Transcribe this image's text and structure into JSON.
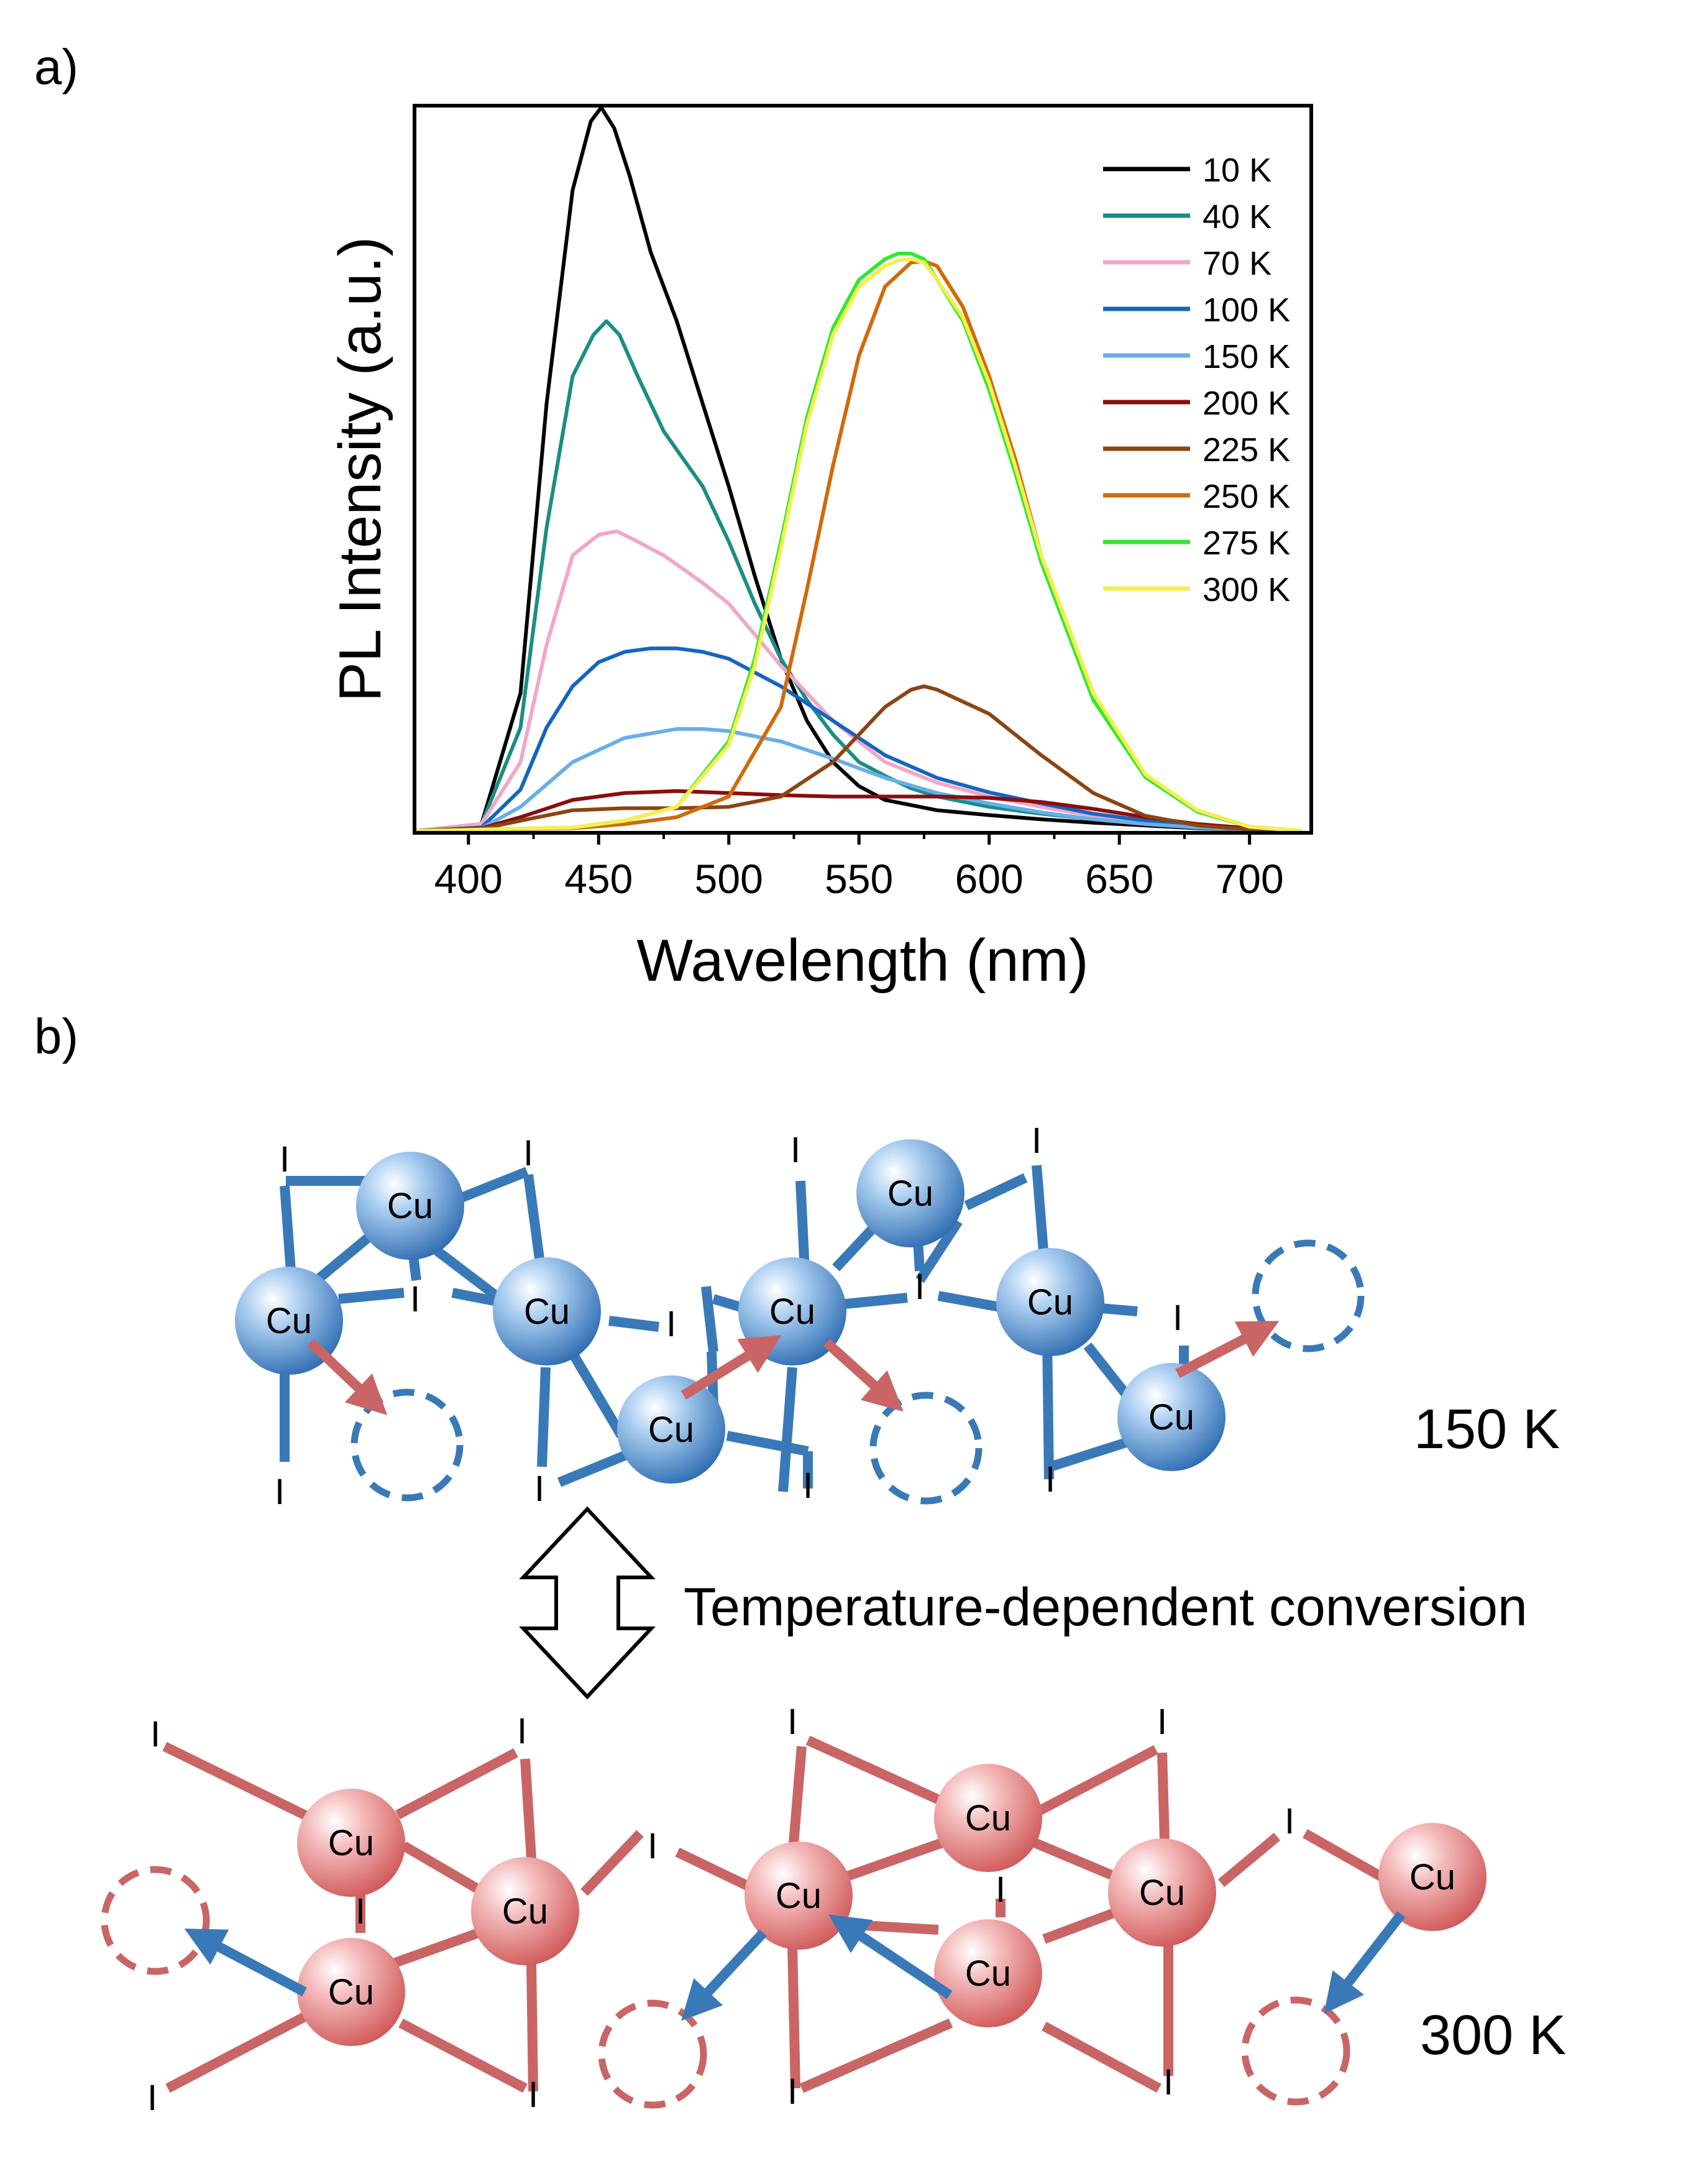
{
  "panel_a": {
    "label": "a)"
  },
  "panel_b": {
    "label": "b)",
    "conversion_label": "Temperature-dependent conversion",
    "atom_label": "Cu",
    "ligand_label": "I",
    "state_low": "150 K",
    "state_high": "300 K",
    "colors": {
      "cu_low": "#3f7ebf",
      "bond_low": "#3a79b7",
      "cu_high": "#dc7c7c",
      "bond_high": "#c96565",
      "arrow_low": "#c96565",
      "arrow_high": "#3a79b7"
    }
  },
  "chart_data": {
    "type": "line",
    "xlabel": "Wavelength (nm)",
    "ylabel": "PL Intensity (a.u.)",
    "xlim": [
      380,
      723
    ],
    "ylim": [
      0,
      1.05
    ],
    "xticks": [
      "400",
      "450",
      "500",
      "550",
      "600",
      "650",
      "700"
    ],
    "yticks_shown": false,
    "grid": false,
    "legend_position": "top-right",
    "series": [
      {
        "name": "10 K",
        "color": "#000000",
        "x": [
          380,
          405,
          420,
          430,
          440,
          447,
          451,
          456,
          462,
          470,
          480,
          490,
          500,
          510,
          520,
          530,
          540,
          550,
          560,
          580,
          600,
          620,
          640,
          660,
          680,
          700,
          720
        ],
        "y": [
          0,
          0.01,
          0.2,
          0.62,
          0.93,
          1.03,
          1.05,
          1.02,
          0.95,
          0.84,
          0.74,
          0.62,
          0.5,
          0.37,
          0.25,
          0.16,
          0.1,
          0.065,
          0.045,
          0.03,
          0.023,
          0.017,
          0.012,
          0.008,
          0.004,
          0.002,
          0
        ]
      },
      {
        "name": "40 K",
        "color": "#1a8e85",
        "x": [
          380,
          405,
          420,
          430,
          440,
          448,
          453,
          458,
          465,
          475,
          490,
          500,
          510,
          520,
          530,
          540,
          550,
          560,
          570,
          580,
          600,
          620,
          640,
          660,
          680,
          700,
          720
        ],
        "y": [
          0,
          0.01,
          0.15,
          0.44,
          0.66,
          0.72,
          0.74,
          0.72,
          0.66,
          0.58,
          0.5,
          0.42,
          0.33,
          0.25,
          0.19,
          0.14,
          0.1,
          0.08,
          0.062,
          0.05,
          0.035,
          0.025,
          0.017,
          0.01,
          0.005,
          0.002,
          0
        ]
      },
      {
        "name": "70 K",
        "color": "#f0a7c8",
        "x": [
          380,
          405,
          420,
          430,
          440,
          450,
          457,
          465,
          475,
          490,
          500,
          520,
          540,
          560,
          580,
          600,
          620,
          640,
          660,
          680,
          700,
          720
        ],
        "y": [
          0,
          0.01,
          0.1,
          0.27,
          0.4,
          0.43,
          0.435,
          0.42,
          0.4,
          0.36,
          0.33,
          0.24,
          0.16,
          0.1,
          0.07,
          0.05,
          0.035,
          0.022,
          0.013,
          0.006,
          0.002,
          0
        ]
      },
      {
        "name": "100 K",
        "color": "#1565c0",
        "x": [
          380,
          405,
          420,
          430,
          440,
          450,
          460,
          470,
          480,
          490,
          500,
          520,
          540,
          560,
          580,
          600,
          620,
          640,
          660,
          680,
          700,
          720
        ],
        "y": [
          0,
          0.005,
          0.06,
          0.15,
          0.21,
          0.245,
          0.26,
          0.265,
          0.265,
          0.26,
          0.25,
          0.21,
          0.16,
          0.11,
          0.077,
          0.056,
          0.04,
          0.025,
          0.015,
          0.007,
          0.003,
          0
        ]
      },
      {
        "name": "150 K",
        "color": "#6aaee8",
        "x": [
          380,
          405,
          420,
          440,
          460,
          480,
          490,
          500,
          520,
          540,
          560,
          580,
          600,
          620,
          640,
          660,
          680,
          700,
          720
        ],
        "y": [
          0,
          0.004,
          0.035,
          0.1,
          0.135,
          0.148,
          0.148,
          0.145,
          0.13,
          0.105,
          0.077,
          0.055,
          0.04,
          0.027,
          0.017,
          0.01,
          0.005,
          0.002,
          0
        ]
      },
      {
        "name": "200 K",
        "color": "#8b0d0d",
        "x": [
          380,
          405,
          420,
          440,
          460,
          480,
          500,
          520,
          540,
          560,
          580,
          600,
          620,
          640,
          660,
          680,
          700,
          720
        ],
        "y": [
          0,
          0.004,
          0.02,
          0.045,
          0.055,
          0.058,
          0.055,
          0.052,
          0.05,
          0.05,
          0.05,
          0.048,
          0.042,
          0.032,
          0.02,
          0.01,
          0.004,
          0
        ]
      },
      {
        "name": "225 K",
        "color": "#8b4513",
        "x": [
          380,
          405,
          420,
          440,
          460,
          480,
          500,
          520,
          540,
          560,
          570,
          575,
          580,
          600,
          620,
          640,
          660,
          680,
          700,
          720
        ],
        "y": [
          0,
          0.003,
          0.015,
          0.03,
          0.033,
          0.033,
          0.035,
          0.05,
          0.1,
          0.18,
          0.205,
          0.21,
          0.205,
          0.17,
          0.11,
          0.055,
          0.022,
          0.008,
          0.002,
          0
        ]
      },
      {
        "name": "250 K",
        "color": "#d06a0a",
        "x": [
          380,
          440,
          460,
          480,
          500,
          520,
          530,
          540,
          550,
          560,
          570,
          575,
          580,
          590,
          600,
          610,
          620,
          640,
          660,
          680,
          700,
          720
        ],
        "y": [
          0,
          0.004,
          0.01,
          0.02,
          0.05,
          0.18,
          0.35,
          0.53,
          0.69,
          0.79,
          0.825,
          0.827,
          0.82,
          0.76,
          0.66,
          0.54,
          0.4,
          0.2,
          0.08,
          0.03,
          0.006,
          0
        ]
      },
      {
        "name": "275 K",
        "color": "#33e833",
        "x": [
          380,
          440,
          460,
          480,
          500,
          510,
          520,
          530,
          540,
          550,
          560,
          565,
          570,
          575,
          580,
          590,
          600,
          610,
          620,
          640,
          660,
          680,
          700,
          720
        ],
        "y": [
          0,
          0.005,
          0.015,
          0.035,
          0.13,
          0.25,
          0.42,
          0.6,
          0.73,
          0.8,
          0.83,
          0.838,
          0.838,
          0.83,
          0.8,
          0.74,
          0.64,
          0.52,
          0.39,
          0.19,
          0.078,
          0.028,
          0.006,
          0
        ]
      },
      {
        "name": "300 K",
        "color": "#f5ef50",
        "x": [
          380,
          440,
          460,
          480,
          500,
          510,
          520,
          530,
          540,
          550,
          560,
          565,
          570,
          575,
          580,
          590,
          600,
          610,
          620,
          640,
          660,
          680,
          700,
          720
        ],
        "y": [
          0,
          0.005,
          0.015,
          0.035,
          0.125,
          0.24,
          0.41,
          0.59,
          0.72,
          0.79,
          0.82,
          0.828,
          0.83,
          0.825,
          0.8,
          0.745,
          0.65,
          0.53,
          0.4,
          0.2,
          0.082,
          0.03,
          0.006,
          0
        ]
      }
    ]
  }
}
